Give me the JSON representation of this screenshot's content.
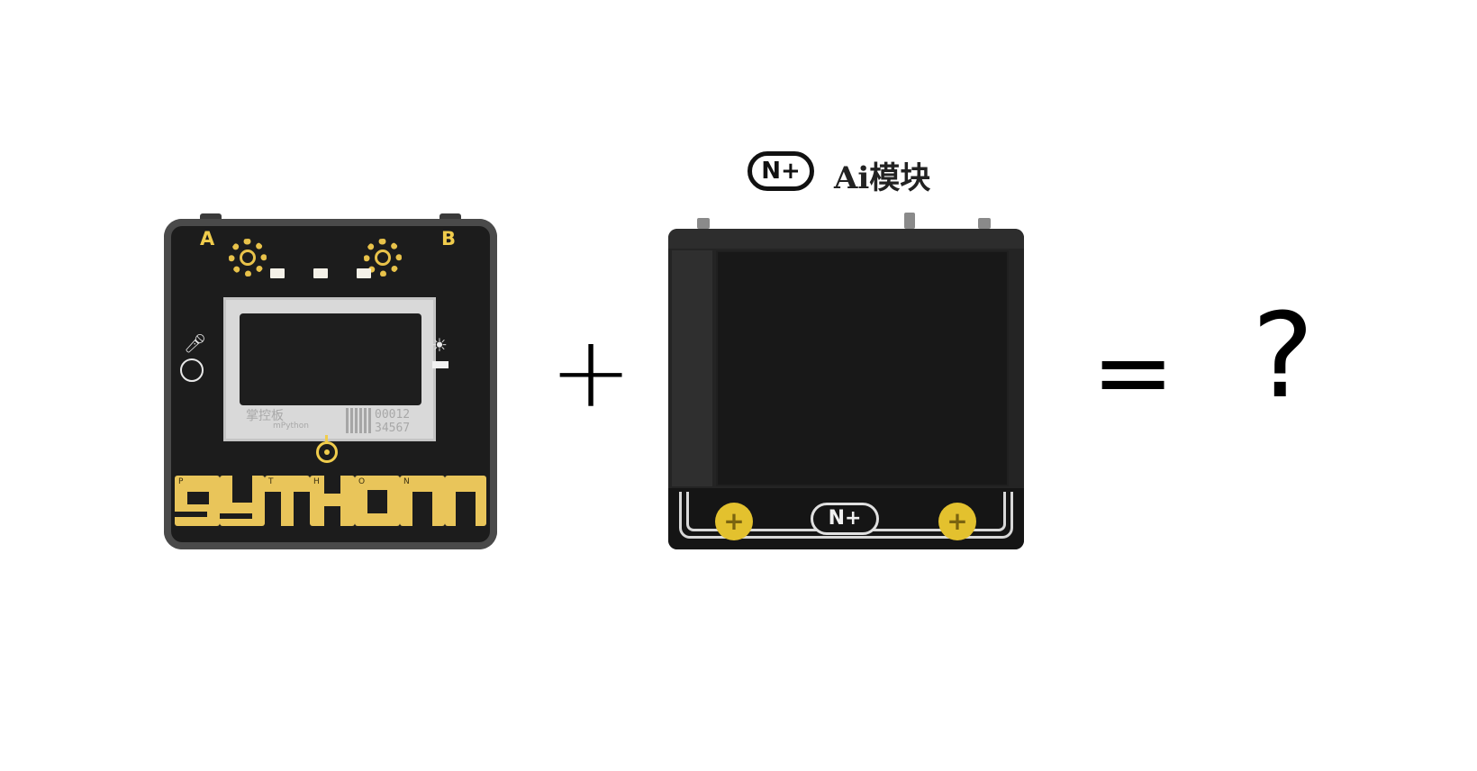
{
  "board": {
    "button_a": "A",
    "button_b": "B",
    "screen_brand": "掌控板",
    "screen_brand_sub": "mPython",
    "serial_line1": "00012",
    "serial_line2": "34567",
    "strip_tags": [
      "P",
      "T",
      "H",
      "O",
      "N"
    ],
    "colors": {
      "body": "#1c1c1c",
      "gold": "#e9c55a"
    }
  },
  "operators": {
    "plus": "+",
    "equals": "=",
    "question": "?"
  },
  "module": {
    "logo": "N+",
    "title": "Ai模块",
    "bottom_logo": "N+",
    "colors": {
      "body": "#242424",
      "screw": "#e3c12e"
    }
  }
}
